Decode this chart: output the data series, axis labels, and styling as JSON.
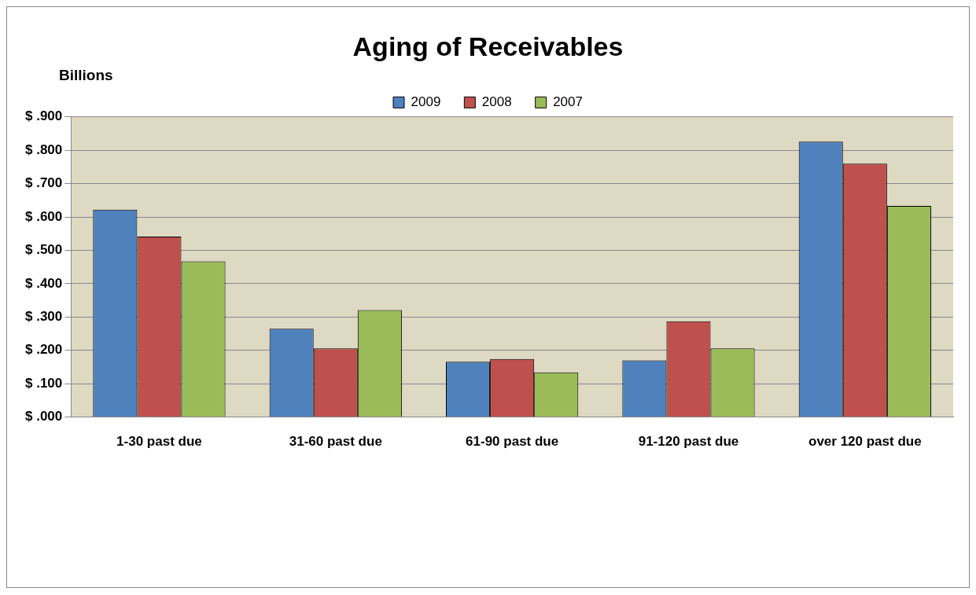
{
  "chart_data": {
    "type": "bar",
    "title": "Aging of Receivables",
    "ylabel": "Billions",
    "categories": [
      "1-30 past due",
      "31-60 past due",
      "61-90 past due",
      "91-120 past due",
      "over 120 past due"
    ],
    "series": [
      {
        "name": "2009",
        "color": "#4f81bd",
        "values": [
          0.622,
          0.265,
          0.166,
          0.17,
          0.826
        ]
      },
      {
        "name": "2008",
        "color": "#c0504d",
        "values": [
          0.541,
          0.206,
          0.174,
          0.287,
          0.76
        ]
      },
      {
        "name": "2007",
        "color": "#9bbb59",
        "values": [
          0.467,
          0.321,
          0.134,
          0.206,
          0.633
        ]
      }
    ],
    "ylim": [
      0,
      0.9
    ],
    "yticks": [
      {
        "value": 0,
        "label": "$ .000"
      },
      {
        "value": 0.1,
        "label": "$ .100"
      },
      {
        "value": 0.2,
        "label": "$ .200"
      },
      {
        "value": 0.3,
        "label": "$ .300"
      },
      {
        "value": 0.4,
        "label": "$ .400"
      },
      {
        "value": 0.5,
        "label": "$ .500"
      },
      {
        "value": 0.6,
        "label": "$ .600"
      },
      {
        "value": 0.7,
        "label": "$ .700"
      },
      {
        "value": 0.8,
        "label": "$ .800"
      },
      {
        "value": 0.9,
        "label": "$ .900"
      }
    ],
    "grid": "y",
    "legend": "top"
  }
}
